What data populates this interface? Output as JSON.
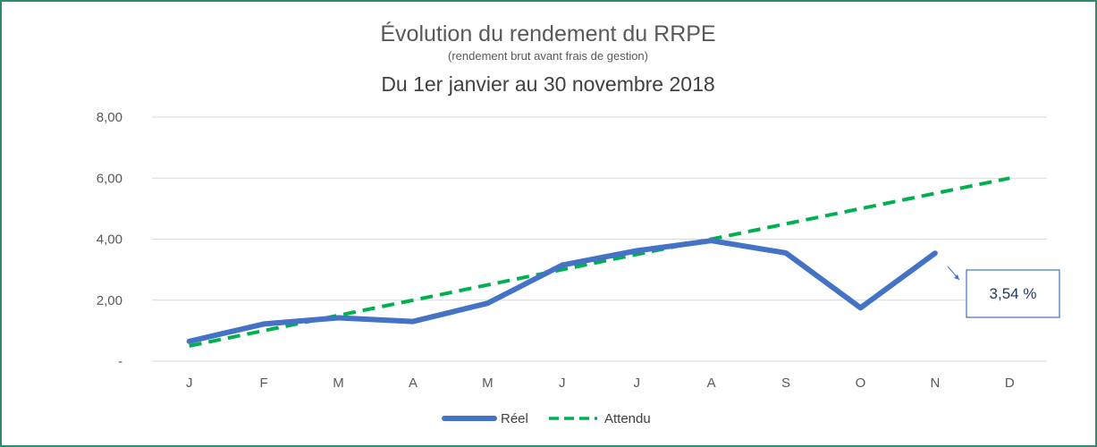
{
  "chart_data": {
    "type": "line",
    "title": "Évolution du rendement du RRPE",
    "subtitle": "(rendement brut avant frais de gestion)",
    "subtitle2": "Du 1er janvier au 30 novembre 2018",
    "categories": [
      "J",
      "F",
      "M",
      "A",
      "M",
      "J",
      "J",
      "A",
      "S",
      "O",
      "N",
      "D"
    ],
    "y_ticks": [
      "-",
      "2,00",
      "4,00",
      "6,00",
      "8,00"
    ],
    "ylim": [
      0,
      8
    ],
    "grid": true,
    "legend_position": "bottom",
    "series": [
      {
        "name": "Réel",
        "color": "#4472c4",
        "style": "solid",
        "values": [
          0.65,
          1.22,
          1.42,
          1.3,
          1.9,
          3.15,
          3.62,
          3.95,
          3.55,
          1.75,
          3.54,
          null
        ]
      },
      {
        "name": "Attendu",
        "color": "#00b050",
        "style": "dashed",
        "values": [
          0.5,
          1.0,
          1.5,
          2.0,
          2.5,
          3.0,
          3.5,
          4.0,
          4.5,
          5.0,
          5.5,
          6.0
        ]
      }
    ],
    "callout": {
      "text": "3,54 %",
      "category_index": 10
    }
  }
}
